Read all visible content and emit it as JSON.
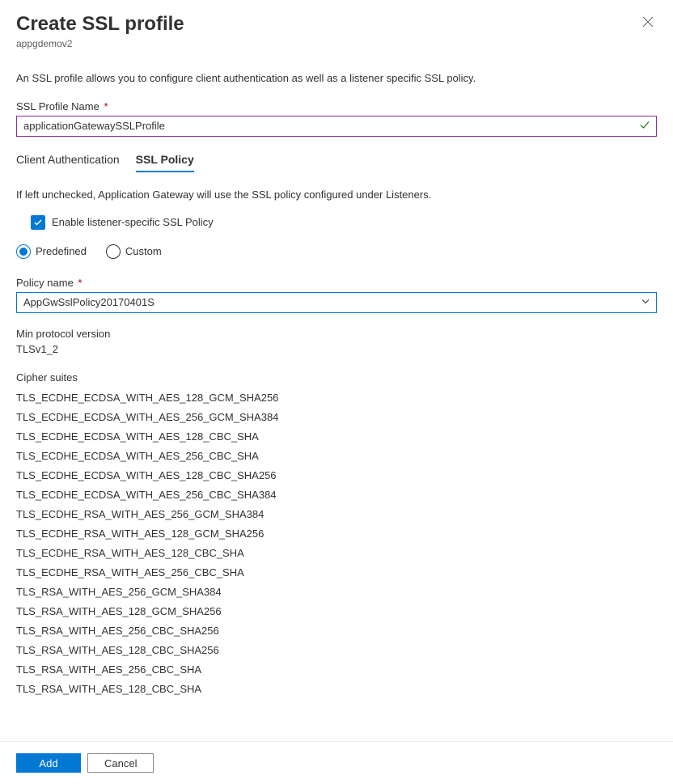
{
  "header": {
    "title": "Create SSL profile",
    "subtitle": "appgdemov2"
  },
  "description": "An SSL profile allows you to configure client authentication as well as a listener specific SSL policy.",
  "profileName": {
    "label": "SSL Profile Name",
    "value": "applicationGatewaySSLProfile"
  },
  "tabs": {
    "clientAuth": "Client Authentication",
    "sslPolicy": "SSL Policy"
  },
  "helpText": "If left unchecked, Application Gateway will use the SSL policy configured under Listeners.",
  "checkbox": {
    "label": "Enable listener-specific SSL Policy"
  },
  "radio": {
    "predefined": "Predefined",
    "custom": "Custom"
  },
  "policyName": {
    "label": "Policy name",
    "value": "AppGwSslPolicy20170401S"
  },
  "minProtocol": {
    "label": "Min protocol version",
    "value": "TLSv1_2"
  },
  "cipherSuites": {
    "label": "Cipher suites",
    "items": [
      "TLS_ECDHE_ECDSA_WITH_AES_128_GCM_SHA256",
      "TLS_ECDHE_ECDSA_WITH_AES_256_GCM_SHA384",
      "TLS_ECDHE_ECDSA_WITH_AES_128_CBC_SHA",
      "TLS_ECDHE_ECDSA_WITH_AES_256_CBC_SHA",
      "TLS_ECDHE_ECDSA_WITH_AES_128_CBC_SHA256",
      "TLS_ECDHE_ECDSA_WITH_AES_256_CBC_SHA384",
      "TLS_ECDHE_RSA_WITH_AES_256_GCM_SHA384",
      "TLS_ECDHE_RSA_WITH_AES_128_GCM_SHA256",
      "TLS_ECDHE_RSA_WITH_AES_128_CBC_SHA",
      "TLS_ECDHE_RSA_WITH_AES_256_CBC_SHA",
      "TLS_RSA_WITH_AES_256_GCM_SHA384",
      "TLS_RSA_WITH_AES_128_GCM_SHA256",
      "TLS_RSA_WITH_AES_256_CBC_SHA256",
      "TLS_RSA_WITH_AES_128_CBC_SHA256",
      "TLS_RSA_WITH_AES_256_CBC_SHA",
      "TLS_RSA_WITH_AES_128_CBC_SHA"
    ]
  },
  "footer": {
    "add": "Add",
    "cancel": "Cancel"
  },
  "colors": {
    "primary": "#0078d4",
    "success": "#107c10",
    "required": "#a80000",
    "inputBorder": "#8a2da5",
    "text": "#323130",
    "textSecondary": "#605e5c",
    "border": "#edebe9"
  }
}
